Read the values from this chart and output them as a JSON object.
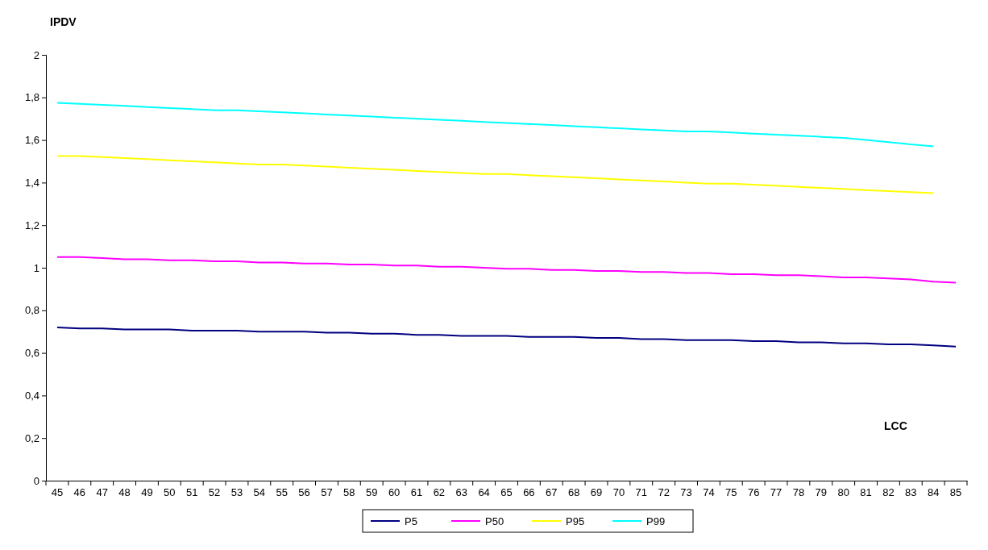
{
  "chart_data": {
    "type": "line",
    "xlabel": "LCC",
    "ylabel": "IPDV",
    "categories": [
      "45",
      "46",
      "47",
      "48",
      "49",
      "50",
      "51",
      "52",
      "53",
      "54",
      "55",
      "56",
      "57",
      "58",
      "59",
      "60",
      "61",
      "62",
      "63",
      "64",
      "65",
      "66",
      "67",
      "68",
      "69",
      "70",
      "71",
      "72",
      "73",
      "74",
      "75",
      "76",
      "77",
      "78",
      "79",
      "80",
      "81",
      "82",
      "83",
      "84",
      "85"
    ],
    "series": [
      {
        "name": "P5",
        "color": "#000080",
        "values": [
          0.72,
          0.715,
          0.715,
          0.71,
          0.71,
          0.71,
          0.705,
          0.705,
          0.705,
          0.7,
          0.7,
          0.7,
          0.695,
          0.695,
          0.69,
          0.69,
          0.685,
          0.685,
          0.68,
          0.68,
          0.68,
          0.675,
          0.675,
          0.675,
          0.67,
          0.67,
          0.665,
          0.665,
          0.66,
          0.66,
          0.66,
          0.655,
          0.655,
          0.65,
          0.65,
          0.645,
          0.645,
          0.64,
          0.64,
          0.635,
          0.63
        ]
      },
      {
        "name": "P50",
        "color": "#ff00ff",
        "values": [
          1.05,
          1.05,
          1.045,
          1.04,
          1.04,
          1.035,
          1.035,
          1.03,
          1.03,
          1.025,
          1.025,
          1.02,
          1.02,
          1.015,
          1.015,
          1.01,
          1.01,
          1.005,
          1.005,
          1.0,
          0.995,
          0.995,
          0.99,
          0.99,
          0.985,
          0.985,
          0.98,
          0.98,
          0.975,
          0.975,
          0.97,
          0.97,
          0.965,
          0.965,
          0.96,
          0.955,
          0.955,
          0.95,
          0.945,
          0.935,
          0.93
        ]
      },
      {
        "name": "P95",
        "color": "#ffff00",
        "values": [
          1.525,
          1.525,
          1.52,
          1.515,
          1.51,
          1.505,
          1.5,
          1.495,
          1.49,
          1.485,
          1.485,
          1.48,
          1.475,
          1.47,
          1.465,
          1.46,
          1.455,
          1.45,
          1.445,
          1.44,
          1.44,
          1.435,
          1.43,
          1.425,
          1.42,
          1.415,
          1.41,
          1.405,
          1.4,
          1.395,
          1.395,
          1.39,
          1.385,
          1.38,
          1.375,
          1.37,
          1.365,
          1.36,
          1.355,
          1.35,
          null
        ]
      },
      {
        "name": "P99",
        "color": "#00ffff",
        "values": [
          1.775,
          1.77,
          1.765,
          1.76,
          1.755,
          1.75,
          1.745,
          1.74,
          1.74,
          1.735,
          1.73,
          1.725,
          1.72,
          1.715,
          1.71,
          1.705,
          1.7,
          1.695,
          1.69,
          1.685,
          1.68,
          1.675,
          1.67,
          1.665,
          1.66,
          1.655,
          1.65,
          1.645,
          1.64,
          1.64,
          1.635,
          1.63,
          1.625,
          1.62,
          1.615,
          1.61,
          1.6,
          1.59,
          1.58,
          1.57,
          null
        ]
      }
    ],
    "ylim": [
      0,
      2
    ],
    "yticks": [
      0,
      {
        "value": 0.2,
        "label": "0,2"
      },
      {
        "value": 0.4,
        "label": "0,4"
      },
      {
        "value": 0.6,
        "label": "0,6"
      },
      {
        "value": 0.8,
        "label": "0,8"
      },
      1,
      {
        "value": 1.2,
        "label": "1,2"
      },
      {
        "value": 1.4,
        "label": "1,4"
      },
      {
        "value": 1.6,
        "label": "1,6"
      },
      {
        "value": 1.8,
        "label": "1,8"
      },
      2
    ],
    "grid": false,
    "legend": "bottom",
    "marker": "none",
    "line_style": "solid"
  }
}
